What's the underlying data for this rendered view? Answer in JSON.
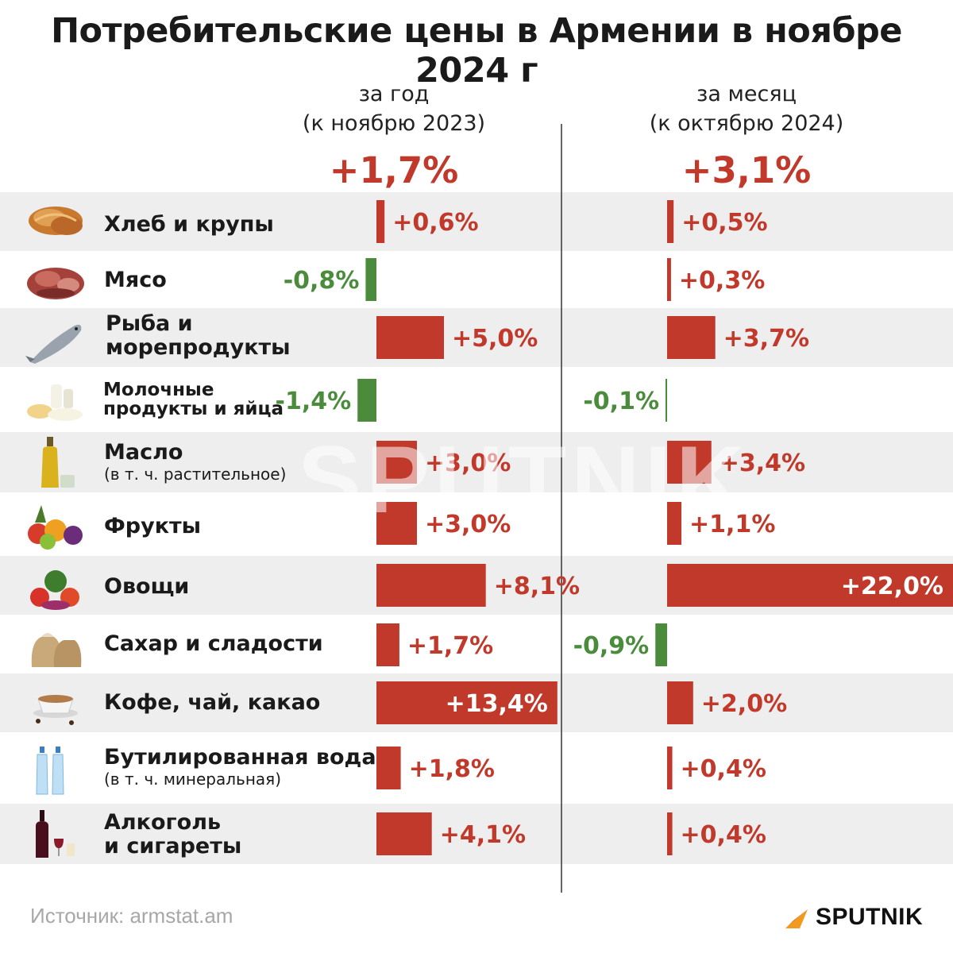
{
  "title": "Потребительские цены в Армении в ноябре 2024 г",
  "columns": {
    "year": {
      "head_line1": "за год",
      "head_line2": "(к ноябрю 2023)",
      "total": "+1,7%"
    },
    "month": {
      "head_line1": "за месяц",
      "head_line2": "(к октябрю 2024)",
      "total": "+3,1%"
    }
  },
  "colors": {
    "positive": "#c0392b",
    "negative": "#4a8c3b",
    "row_shade": "#eeeeee",
    "source": "#a7a7a7"
  },
  "rows": [
    {
      "label": "Хлеб и крупы",
      "icon": "bread-icon"
    },
    {
      "label": "Мясо",
      "icon": "meat-icon"
    },
    {
      "label_line1": "Рыба и",
      "label_line2": "морепродукты",
      "icon": "fish-icon"
    },
    {
      "label_line1": "Молочные",
      "label_line2": "продукты и яйца",
      "icon": "dairy-icon"
    },
    {
      "label": "Масло",
      "sub": "(в т. ч. растительное)",
      "icon": "oil-bottle-icon"
    },
    {
      "label": "Фрукты",
      "icon": "fruits-icon"
    },
    {
      "label": "Овощи",
      "icon": "vegetables-icon"
    },
    {
      "label": "Сахар и сладости",
      "icon": "sugar-sack-icon"
    },
    {
      "label": "Кофе, чай, какао",
      "icon": "coffee-cup-icon"
    },
    {
      "label": "Бутилированная вода",
      "sub": "(в т. ч. минеральная)",
      "icon": "water-bottles-icon"
    },
    {
      "label_line1": "Алкоголь",
      "label_line2": "и сигареты",
      "icon": "wine-bottle-icon"
    }
  ],
  "chart_data": {
    "type": "bar",
    "orientation": "horizontal",
    "categories": [
      "Хлеб и крупы",
      "Мясо",
      "Рыба и морепродукты",
      "Молочные продукты и яйца",
      "Масло",
      "Фрукты",
      "Овощи",
      "Сахар и сладости",
      "Кофе, чай, какао",
      "Бутилированная вода",
      "Алкоголь и сигареты"
    ],
    "series": [
      {
        "name": "за год (к ноябрю 2023)",
        "values": [
          0.6,
          -0.8,
          5.0,
          -1.4,
          3.0,
          3.0,
          8.1,
          1.7,
          13.4,
          1.8,
          4.1
        ],
        "labels": [
          "+0,6%",
          "-0,8%",
          "+5,0%",
          "-1,4%",
          "+3,0%",
          "+3,0%",
          "+8,1%",
          "+1,7%",
          "+13,4%",
          "+1,8%",
          "+4,1%"
        ]
      },
      {
        "name": "за месяц (к октябрю 2024)",
        "values": [
          0.5,
          0.3,
          3.7,
          -0.1,
          3.4,
          1.1,
          22.0,
          -0.9,
          2.0,
          0.4,
          0.4
        ],
        "labels": [
          "+0,5%",
          "+0,3%",
          "+3,7%",
          "-0,1%",
          "+3,4%",
          "+1,1%",
          "+22,0%",
          "-0,9%",
          "+2,0%",
          "+0,4%",
          "+0,4%"
        ]
      }
    ],
    "unit": "%"
  },
  "watermark": "SPUTNIK",
  "footer": {
    "source": "Источник: armstat.am",
    "brand": "SPUTNIK"
  }
}
